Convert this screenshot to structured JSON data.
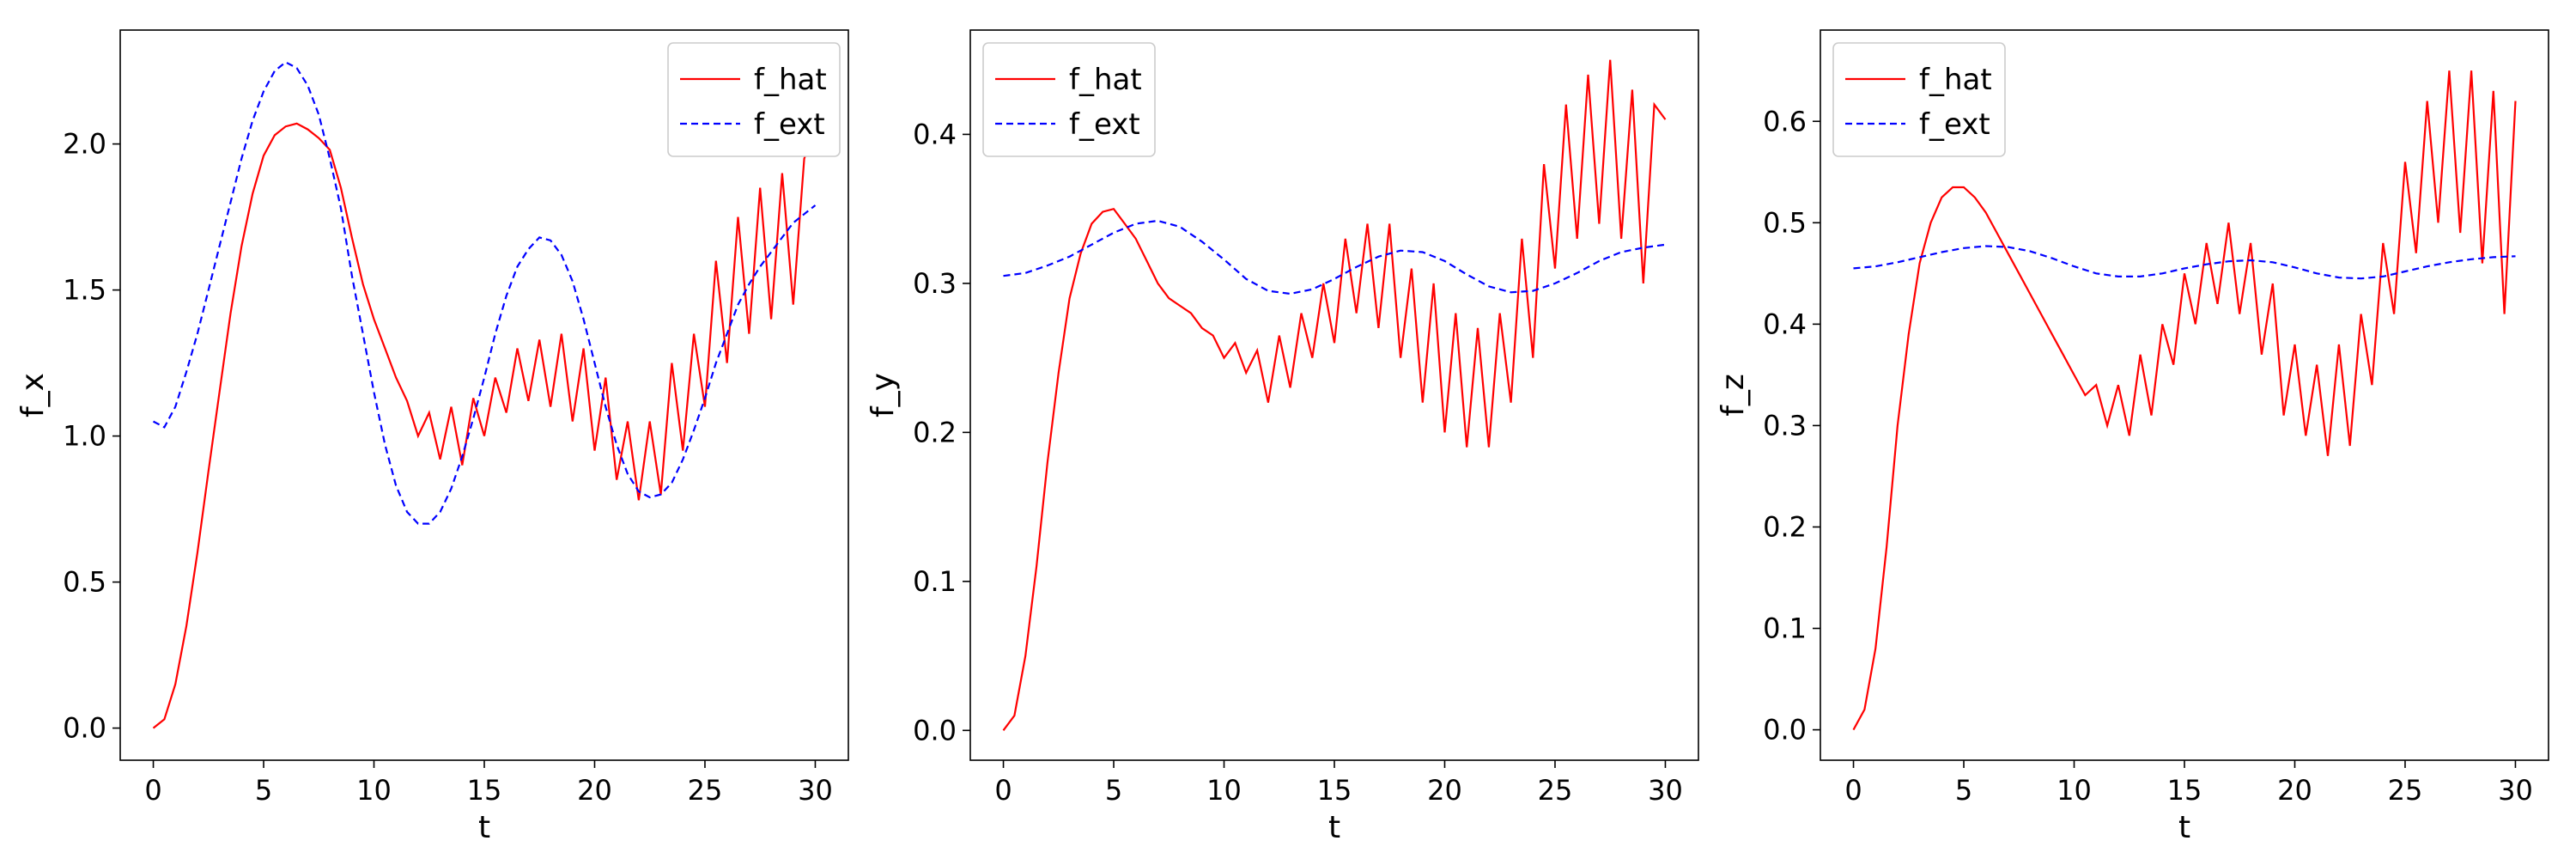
{
  "chart_data": [
    {
      "type": "line",
      "id": "fx",
      "xlabel": "t",
      "ylabel": "f_x",
      "xlim": [
        -1.5,
        31.5
      ],
      "ylim": [
        -0.11,
        2.39
      ],
      "xticks": [
        0,
        5,
        10,
        15,
        20,
        25,
        30
      ],
      "yticks": [
        0.0,
        0.5,
        1.0,
        1.5,
        2.0
      ],
      "ytick_labels": [
        "0.0",
        "0.5",
        "1.0",
        "1.5",
        "2.0"
      ],
      "legend_position": "top-right",
      "series": [
        {
          "name": "f_hat",
          "color": "#ff0000",
          "dash": "solid",
          "x": [
            0,
            0.5,
            1,
            1.5,
            2,
            2.5,
            3,
            3.5,
            4,
            4.5,
            5,
            5.5,
            6,
            6.5,
            7,
            7.5,
            8,
            8.5,
            9,
            9.5,
            10,
            10.5,
            11,
            11.5,
            12,
            12.5,
            13,
            13.5,
            14,
            14.5,
            15,
            15.5,
            16,
            16.5,
            17,
            17.5,
            18,
            18.5,
            19,
            19.5,
            20,
            20.5,
            21,
            21.5,
            22,
            22.5,
            23,
            23.5,
            24,
            24.5,
            25,
            25.5,
            26,
            26.5,
            27,
            27.5,
            28,
            28.5,
            29,
            29.5,
            30
          ],
          "y": [
            0.0,
            0.03,
            0.15,
            0.35,
            0.6,
            0.88,
            1.15,
            1.42,
            1.65,
            1.83,
            1.96,
            2.03,
            2.06,
            2.07,
            2.05,
            2.02,
            1.98,
            1.85,
            1.68,
            1.52,
            1.4,
            1.3,
            1.2,
            1.12,
            1.0,
            1.08,
            0.92,
            1.1,
            0.9,
            1.13,
            1.0,
            1.2,
            1.08,
            1.3,
            1.12,
            1.33,
            1.1,
            1.35,
            1.05,
            1.3,
            0.95,
            1.2,
            0.85,
            1.05,
            0.78,
            1.05,
            0.8,
            1.25,
            0.95,
            1.35,
            1.1,
            1.6,
            1.25,
            1.75,
            1.35,
            1.85,
            1.4,
            1.9,
            1.45,
            1.95,
            2.05
          ]
        },
        {
          "name": "f_ext",
          "color": "#0000ff",
          "dash": "dashed",
          "x": [
            0,
            0.5,
            1,
            1.5,
            2,
            2.5,
            3,
            3.5,
            4,
            4.5,
            5,
            5.5,
            6,
            6.5,
            7,
            7.5,
            8,
            8.5,
            9,
            9.5,
            10,
            10.5,
            11,
            11.5,
            12,
            12.5,
            13,
            13.5,
            14,
            14.5,
            15,
            15.5,
            16,
            16.5,
            17,
            17.5,
            18,
            18.5,
            19,
            19.5,
            20,
            20.5,
            21,
            21.5,
            22,
            22.5,
            23,
            23.5,
            24,
            24.5,
            25,
            25.5,
            26,
            26.5,
            27,
            27.5,
            28,
            28.5,
            29,
            29.5,
            30
          ],
          "y": [
            1.05,
            1.03,
            1.1,
            1.22,
            1.35,
            1.5,
            1.65,
            1.8,
            1.95,
            2.08,
            2.18,
            2.25,
            2.28,
            2.26,
            2.2,
            2.1,
            1.95,
            1.78,
            1.55,
            1.35,
            1.15,
            0.97,
            0.83,
            0.74,
            0.7,
            0.7,
            0.74,
            0.82,
            0.93,
            1.06,
            1.2,
            1.35,
            1.48,
            1.58,
            1.64,
            1.68,
            1.67,
            1.62,
            1.53,
            1.4,
            1.25,
            1.1,
            0.97,
            0.87,
            0.81,
            0.79,
            0.8,
            0.84,
            0.92,
            1.02,
            1.13,
            1.25,
            1.35,
            1.45,
            1.52,
            1.58,
            1.63,
            1.68,
            1.73,
            1.76,
            1.79
          ]
        }
      ]
    },
    {
      "type": "line",
      "id": "fy",
      "xlabel": "t",
      "ylabel": "f_y",
      "xlim": [
        -1.5,
        31.5
      ],
      "ylim": [
        -0.02,
        0.47
      ],
      "xticks": [
        0,
        5,
        10,
        15,
        20,
        25,
        30
      ],
      "yticks": [
        0.0,
        0.1,
        0.2,
        0.3,
        0.4
      ],
      "ytick_labels": [
        "0.0",
        "0.1",
        "0.2",
        "0.3",
        "0.4"
      ],
      "legend_position": "top-left",
      "series": [
        {
          "name": "f_hat",
          "color": "#ff0000",
          "dash": "solid",
          "x": [
            0,
            0.5,
            1,
            1.5,
            2,
            2.5,
            3,
            3.5,
            4,
            4.5,
            5,
            5.5,
            6,
            6.5,
            7,
            7.5,
            8,
            8.5,
            9,
            9.5,
            10,
            10.5,
            11,
            11.5,
            12,
            12.5,
            13,
            13.5,
            14,
            14.5,
            15,
            15.5,
            16,
            16.5,
            17,
            17.5,
            18,
            18.5,
            19,
            19.5,
            20,
            20.5,
            21,
            21.5,
            22,
            22.5,
            23,
            23.5,
            24,
            24.5,
            25,
            25.5,
            26,
            26.5,
            27,
            27.5,
            28,
            28.5,
            29,
            29.5,
            30
          ],
          "y": [
            0.0,
            0.01,
            0.05,
            0.11,
            0.18,
            0.24,
            0.29,
            0.32,
            0.34,
            0.348,
            0.35,
            0.34,
            0.33,
            0.315,
            0.3,
            0.29,
            0.285,
            0.28,
            0.27,
            0.265,
            0.25,
            0.26,
            0.24,
            0.255,
            0.22,
            0.265,
            0.23,
            0.28,
            0.25,
            0.3,
            0.26,
            0.33,
            0.28,
            0.34,
            0.27,
            0.34,
            0.25,
            0.31,
            0.22,
            0.3,
            0.2,
            0.28,
            0.19,
            0.27,
            0.19,
            0.28,
            0.22,
            0.33,
            0.25,
            0.38,
            0.31,
            0.42,
            0.33,
            0.44,
            0.34,
            0.45,
            0.33,
            0.43,
            0.3,
            0.42,
            0.41
          ]
        },
        {
          "name": "f_ext",
          "color": "#0000ff",
          "dash": "dashed",
          "x": [
            0,
            1,
            2,
            3,
            4,
            5,
            6,
            7,
            8,
            9,
            10,
            11,
            12,
            13,
            14,
            15,
            16,
            17,
            18,
            19,
            20,
            21,
            22,
            23,
            24,
            25,
            26,
            27,
            28,
            29,
            30
          ],
          "y": [
            0.305,
            0.307,
            0.312,
            0.318,
            0.326,
            0.334,
            0.34,
            0.342,
            0.338,
            0.328,
            0.316,
            0.303,
            0.295,
            0.293,
            0.296,
            0.303,
            0.311,
            0.318,
            0.322,
            0.321,
            0.315,
            0.306,
            0.298,
            0.294,
            0.295,
            0.3,
            0.307,
            0.315,
            0.321,
            0.324,
            0.326
          ]
        }
      ]
    },
    {
      "type": "line",
      "id": "fz",
      "xlabel": "t",
      "ylabel": "f_z",
      "xlim": [
        -1.5,
        31.5
      ],
      "ylim": [
        -0.03,
        0.69
      ],
      "xticks": [
        0,
        5,
        10,
        15,
        20,
        25,
        30
      ],
      "yticks": [
        0.0,
        0.1,
        0.2,
        0.3,
        0.4,
        0.5,
        0.6
      ],
      "ytick_labels": [
        "0.0",
        "0.1",
        "0.2",
        "0.3",
        "0.4",
        "0.5",
        "0.6"
      ],
      "legend_position": "top-left",
      "series": [
        {
          "name": "f_hat",
          "color": "#ff0000",
          "dash": "solid",
          "x": [
            0,
            0.5,
            1,
            1.5,
            2,
            2.5,
            3,
            3.5,
            4,
            4.5,
            5,
            5.5,
            6,
            6.5,
            7,
            7.5,
            8,
            8.5,
            9,
            9.5,
            10,
            10.5,
            11,
            11.5,
            12,
            12.5,
            13,
            13.5,
            14,
            14.5,
            15,
            15.5,
            16,
            16.5,
            17,
            17.5,
            18,
            18.5,
            19,
            19.5,
            20,
            20.5,
            21,
            21.5,
            22,
            22.5,
            23,
            23.5,
            24,
            24.5,
            25,
            25.5,
            26,
            26.5,
            27,
            27.5,
            28,
            28.5,
            29,
            29.5,
            30
          ],
          "y": [
            0.0,
            0.02,
            0.08,
            0.18,
            0.3,
            0.39,
            0.46,
            0.5,
            0.525,
            0.535,
            0.535,
            0.525,
            0.51,
            0.49,
            0.47,
            0.45,
            0.43,
            0.41,
            0.39,
            0.37,
            0.35,
            0.33,
            0.34,
            0.3,
            0.34,
            0.29,
            0.37,
            0.31,
            0.4,
            0.36,
            0.45,
            0.4,
            0.48,
            0.42,
            0.5,
            0.41,
            0.48,
            0.37,
            0.44,
            0.31,
            0.38,
            0.29,
            0.36,
            0.27,
            0.38,
            0.28,
            0.41,
            0.34,
            0.48,
            0.41,
            0.56,
            0.47,
            0.62,
            0.5,
            0.65,
            0.49,
            0.65,
            0.46,
            0.63,
            0.41,
            0.62
          ]
        },
        {
          "name": "f_ext",
          "color": "#0000ff",
          "dash": "dashed",
          "x": [
            0,
            1,
            2,
            3,
            4,
            5,
            6,
            7,
            8,
            9,
            10,
            11,
            12,
            13,
            14,
            15,
            16,
            17,
            18,
            19,
            20,
            21,
            22,
            23,
            24,
            25,
            26,
            27,
            28,
            29,
            30
          ],
          "y": [
            0.455,
            0.457,
            0.461,
            0.466,
            0.471,
            0.475,
            0.477,
            0.476,
            0.472,
            0.465,
            0.457,
            0.45,
            0.447,
            0.447,
            0.45,
            0.455,
            0.459,
            0.462,
            0.463,
            0.461,
            0.456,
            0.45,
            0.446,
            0.445,
            0.447,
            0.452,
            0.457,
            0.461,
            0.464,
            0.466,
            0.467
          ]
        }
      ]
    }
  ]
}
